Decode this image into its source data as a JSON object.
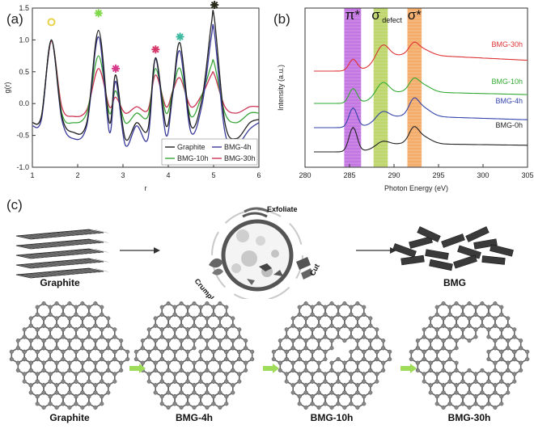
{
  "panels": {
    "a": "(a)",
    "b": "(b)",
    "c": "(c)"
  },
  "chart_data": [
    {
      "type": "line",
      "panel": "(a)",
      "xlabel": "r",
      "ylabel": "g(r)",
      "xlim": [
        1,
        6
      ],
      "ylim": [
        -1.0,
        1.5
      ],
      "xticks": [
        "1",
        "2",
        "3",
        "4",
        "5",
        "6"
      ],
      "yticks": [
        "-1.0",
        "-0.5",
        "0.0",
        "0.5",
        "1.0",
        "1.5"
      ],
      "legend": [
        "Graphite",
        "BMG-4h",
        "BMG-10h",
        "BMG-30h"
      ],
      "legend_position": "bottom-right",
      "series": [
        {
          "name": "Graphite",
          "color": "#222222",
          "x": [
            1.0,
            1.2,
            1.42,
            1.65,
            1.9,
            2.2,
            2.46,
            2.7,
            2.84,
            3.05,
            3.3,
            3.55,
            3.72,
            3.95,
            4.1,
            4.26,
            4.5,
            4.75,
            4.95,
            5.02,
            5.25,
            5.5,
            5.8,
            6.0
          ],
          "y": [
            -0.3,
            -0.2,
            1.0,
            -0.2,
            -0.45,
            -0.3,
            1.15,
            -0.3,
            0.45,
            -0.55,
            -0.3,
            -0.4,
            0.72,
            -0.35,
            0.2,
            0.95,
            -0.35,
            0.1,
            1.25,
            1.32,
            -0.3,
            -0.55,
            -0.3,
            -0.25
          ]
        },
        {
          "name": "BMG-4h",
          "color": "#3a3a9a",
          "x": [
            1.0,
            1.2,
            1.42,
            1.65,
            1.9,
            2.2,
            2.46,
            2.7,
            2.84,
            3.05,
            3.3,
            3.55,
            3.72,
            3.95,
            4.1,
            4.26,
            4.5,
            4.75,
            4.95,
            5.02,
            5.25,
            5.5,
            5.8,
            6.0
          ],
          "y": [
            -0.35,
            -0.25,
            1.0,
            -0.25,
            -0.55,
            -0.35,
            1.05,
            -0.45,
            0.35,
            -0.65,
            -0.35,
            -0.55,
            0.7,
            -0.5,
            0.15,
            0.82,
            -0.45,
            0.0,
            1.05,
            1.1,
            -0.45,
            -0.65,
            -0.4,
            -0.3
          ]
        },
        {
          "name": "BMG-10h",
          "color": "#3aa63a",
          "x": [
            1.0,
            1.2,
            1.42,
            1.65,
            1.9,
            2.2,
            2.46,
            2.7,
            2.84,
            3.05,
            3.3,
            3.55,
            3.72,
            3.95,
            4.1,
            4.26,
            4.5,
            4.75,
            4.95,
            5.02,
            5.25,
            5.5,
            5.8,
            6.0
          ],
          "y": [
            -0.3,
            -0.2,
            1.0,
            -0.15,
            -0.3,
            -0.15,
            0.75,
            -0.15,
            0.2,
            -0.3,
            -0.15,
            -0.2,
            0.55,
            -0.15,
            0.2,
            0.55,
            -0.2,
            0.15,
            0.6,
            0.62,
            -0.15,
            -0.3,
            -0.15,
            -0.15
          ]
        },
        {
          "name": "BMG-30h",
          "color": "#cc3355",
          "x": [
            1.0,
            1.2,
            1.42,
            1.65,
            1.9,
            2.2,
            2.46,
            2.7,
            2.84,
            3.05,
            3.3,
            3.55,
            3.72,
            3.95,
            4.1,
            4.26,
            4.5,
            4.75,
            4.95,
            5.02,
            5.25,
            5.5,
            5.8,
            6.0
          ],
          "y": [
            -0.3,
            -0.2,
            0.98,
            -0.05,
            -0.2,
            -0.1,
            0.55,
            -0.05,
            0.1,
            -0.15,
            -0.05,
            -0.1,
            0.45,
            -0.05,
            0.2,
            0.4,
            -0.05,
            0.15,
            0.45,
            0.45,
            -0.05,
            -0.15,
            -0.05,
            -0.05
          ]
        }
      ],
      "markers": [
        {
          "x": 1.42,
          "y": 1.28,
          "color": "#e8d24a",
          "style": "ring"
        },
        {
          "x": 2.46,
          "y": 1.42,
          "color": "#7fd84a",
          "style": "burst"
        },
        {
          "x": 2.84,
          "y": 0.55,
          "color": "#d63a8a",
          "style": "burst"
        },
        {
          "x": 3.72,
          "y": 0.85,
          "color": "#d63a6a",
          "style": "burst"
        },
        {
          "x": 4.26,
          "y": 1.05,
          "color": "#3fb8a0",
          "style": "burst"
        },
        {
          "x": 5.02,
          "y": 1.55,
          "color": "#2a2a1a",
          "style": "burst"
        }
      ]
    },
    {
      "type": "line",
      "panel": "(b)",
      "xlabel": "Photon Energy (eV)",
      "ylabel": "Intensity (a.u.)",
      "xlim": [
        280,
        305
      ],
      "xticks": [
        "280",
        "285",
        "290",
        "295",
        "300",
        "305"
      ],
      "bands": [
        {
          "label": "π*",
          "from": 284.4,
          "to": 286.3,
          "color": "#b04ad8"
        },
        {
          "label": "σ",
          "sub": "defect",
          "from": 287.7,
          "to": 289.3,
          "color": "#a8c83a"
        },
        {
          "label": "σ*",
          "from": 291.5,
          "to": 293.1,
          "color": "#f0903a"
        }
      ],
      "series": [
        {
          "name": "BMG-30h",
          "color": "#dd3333",
          "offset": 0.0
        },
        {
          "name": "BMG-10h",
          "color": "#33aa33",
          "offset": 1.0
        },
        {
          "name": "BMG-4h",
          "color": "#3344aa",
          "offset": 2.0
        },
        {
          "name": "BMG-0h",
          "color": "#222222",
          "offset": 3.0
        }
      ]
    }
  ],
  "schematic": {
    "top_left_label": "Graphite",
    "top_right_label": "BMG",
    "mill_labels": {
      "exfoliate": "Exfoliate",
      "cut": "Cut",
      "crumpled": "Crumpled"
    },
    "lattice_labels": [
      "Graphite",
      "BMG-4h",
      "BMG-10h",
      "BMG-30h"
    ],
    "arrow_color": "#9edc5a"
  }
}
